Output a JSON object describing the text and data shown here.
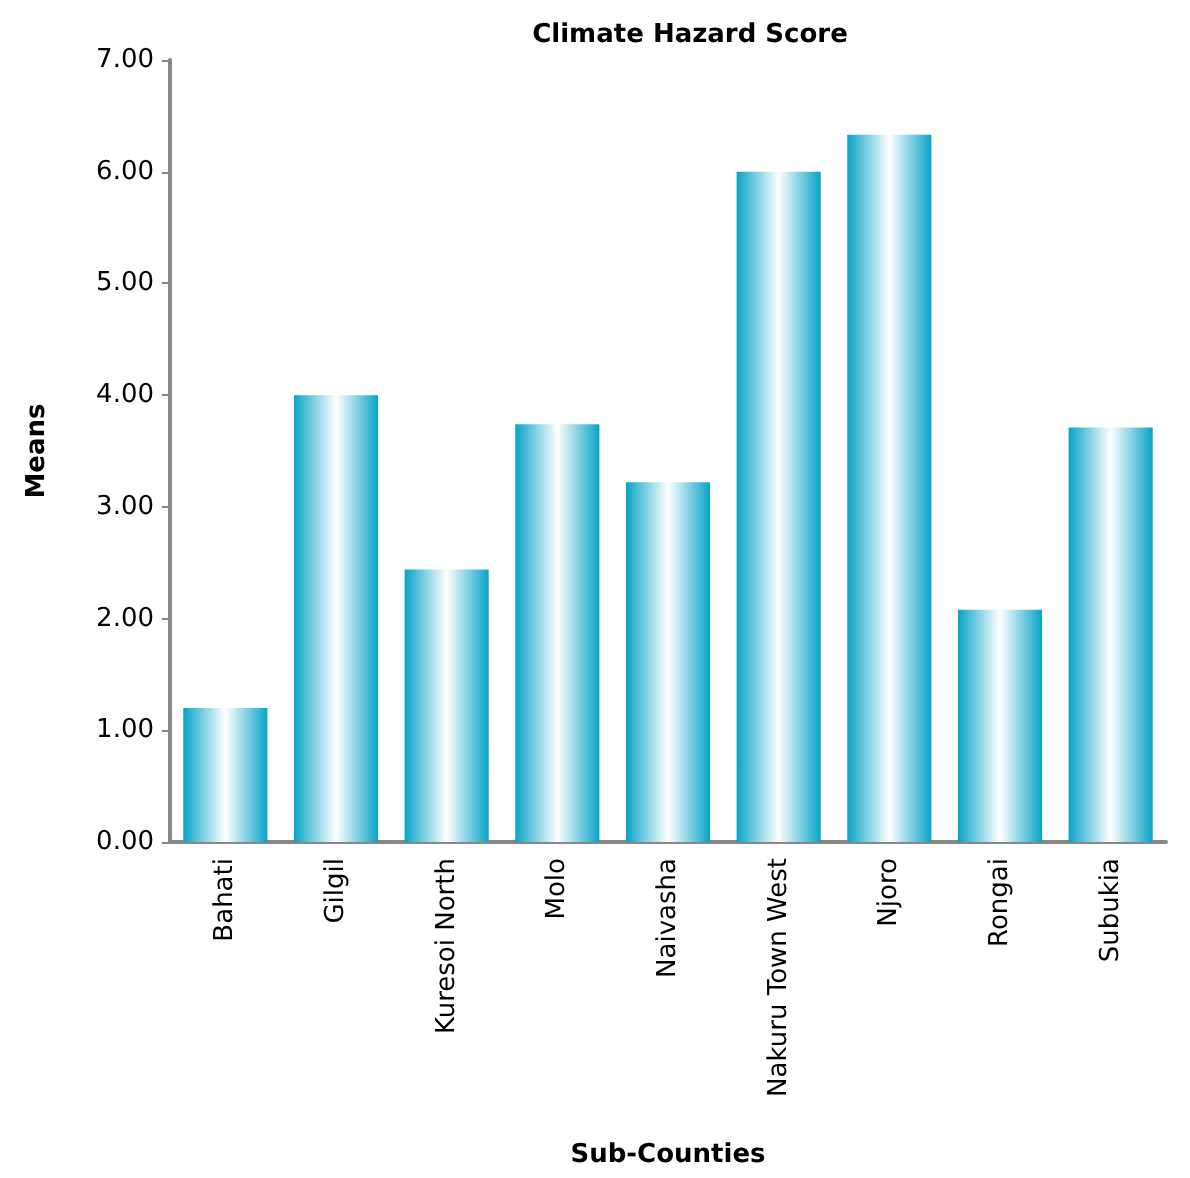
{
  "chart_data": {
    "type": "bar",
    "title": "Climate Hazard Score",
    "xlabel": "Sub-Counties",
    "ylabel": "Means",
    "categories": [
      "Bahati",
      "Gilgil",
      "Kuresoi North",
      "Molo",
      "Naivasha",
      "Nakuru Town West",
      "Njoro",
      "Rongai",
      "Subukia"
    ],
    "values": [
      1.2,
      4.0,
      2.44,
      3.74,
      3.22,
      6.0,
      6.33,
      2.08,
      3.71
    ],
    "color": "#08a3c6",
    "ylim": [
      0,
      7
    ],
    "yticks": [
      {
        "value": 0,
        "label": "0.00"
      },
      {
        "value": 1,
        "label": "1.00"
      },
      {
        "value": 2,
        "label": "2.00"
      },
      {
        "value": 3,
        "label": "3.00"
      },
      {
        "value": 4,
        "label": "4.00"
      },
      {
        "value": 5,
        "label": "5.00"
      },
      {
        "value": 6,
        "label": "6.00"
      },
      {
        "value": 7,
        "label": "7.00"
      }
    ],
    "grid": false
  }
}
